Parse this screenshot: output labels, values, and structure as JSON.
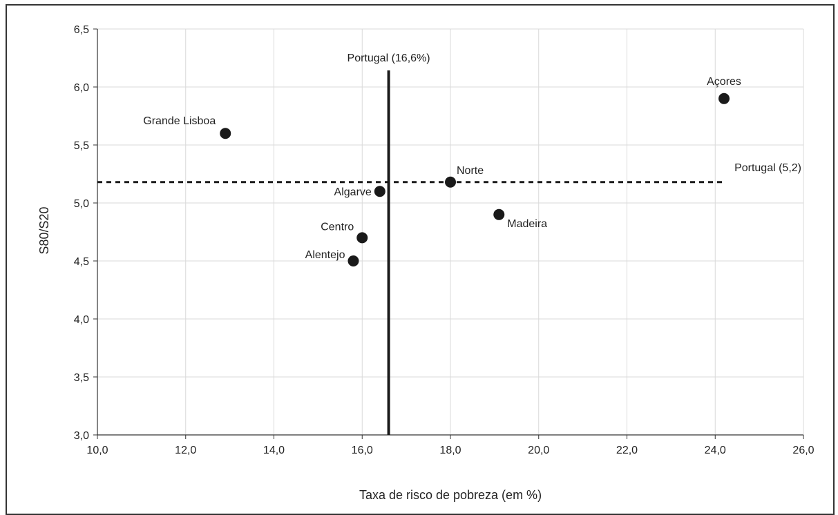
{
  "chart_data": {
    "type": "scatter",
    "xlabel": "Taxa de risco de pobreza (em %)",
    "ylabel": "S80/S20",
    "xlim": [
      10,
      26
    ],
    "ylim": [
      3,
      6.5
    ],
    "x_ticks": [
      "10,0",
      "12,0",
      "14,0",
      "16,0",
      "18,0",
      "20,0",
      "22,0",
      "24,0",
      "26,0"
    ],
    "y_ticks": [
      "3,0",
      "3,5",
      "4,0",
      "4,5",
      "5,0",
      "5,5",
      "6,0",
      "6,5"
    ],
    "grid": true,
    "point_color": "#1a1a1a",
    "points": [
      {
        "label": "Grande Lisboa",
        "x": 12.9,
        "y": 5.6
      },
      {
        "label": "Algarve",
        "x": 16.4,
        "y": 5.1
      },
      {
        "label": "Centro",
        "x": 16.0,
        "y": 4.7
      },
      {
        "label": "Alentejo",
        "x": 15.8,
        "y": 4.5
      },
      {
        "label": "Norte",
        "x": 18.0,
        "y": 5.18
      },
      {
        "label": "Madeira",
        "x": 19.1,
        "y": 4.9
      },
      {
        "label": "Açores",
        "x": 24.2,
        "y": 5.9
      }
    ],
    "reference_lines": [
      {
        "orientation": "vertical",
        "value": 16.6,
        "label": "Portugal (16,6%)",
        "style": "solid"
      },
      {
        "orientation": "horizontal",
        "value": 5.18,
        "label": "Portugal (5,2)",
        "style": "dashed"
      }
    ]
  }
}
